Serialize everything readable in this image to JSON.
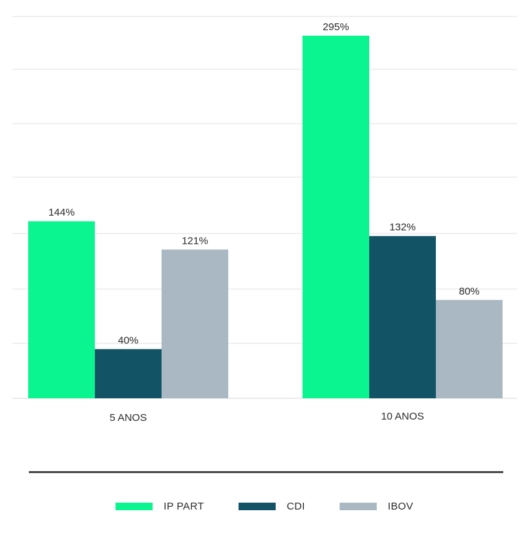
{
  "chart_data": {
    "type": "bar",
    "categories": [
      "5 ANOS",
      "10 ANOS"
    ],
    "series": [
      {
        "name": "IP PART",
        "values": [
          144,
          295
        ],
        "color": "#0af58f"
      },
      {
        "name": "CDI",
        "values": [
          40,
          132
        ],
        "color": "#125465"
      },
      {
        "name": "IBOV",
        "values": [
          121,
          80
        ],
        "color": "#a9b8c2"
      }
    ],
    "value_labels": [
      [
        "144%",
        "295%"
      ],
      [
        "40%",
        "132%"
      ],
      [
        "121%",
        "80%"
      ]
    ],
    "value_suffix": "%",
    "ylim": [
      0,
      310
    ],
    "grid": true,
    "legend_position": "bottom",
    "title": "",
    "xlabel": "",
    "ylabel": ""
  }
}
